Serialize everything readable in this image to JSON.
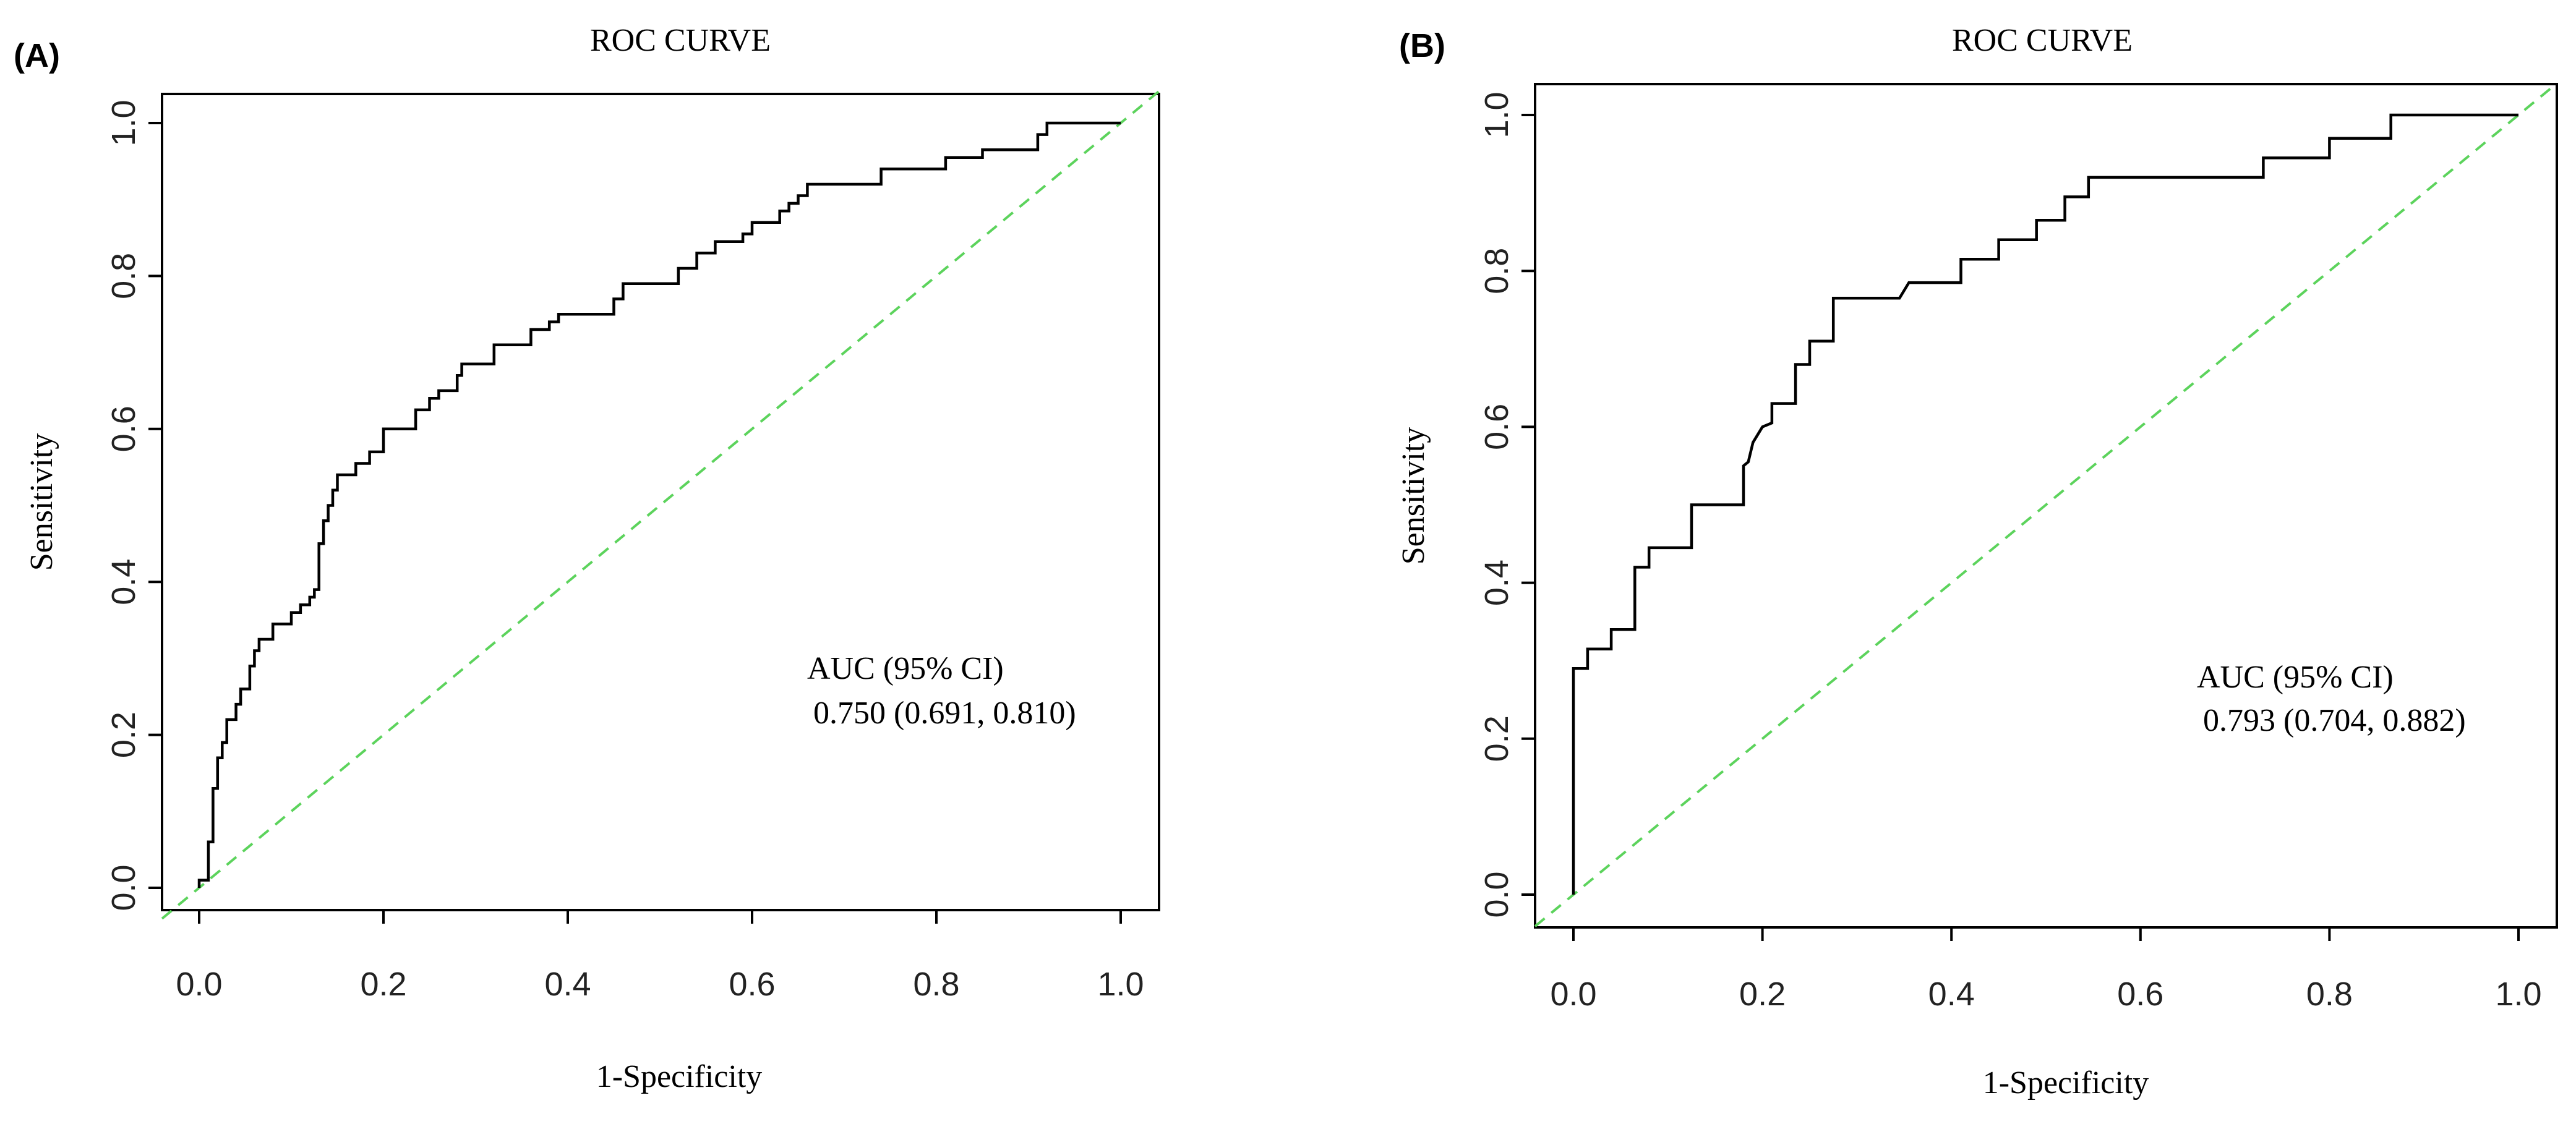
{
  "chart_data": [
    {
      "type": "line",
      "panel_label": "(A)",
      "title": "ROC CURVE",
      "xlabel": "1-Specificity",
      "ylabel": "Sensitivity",
      "xlim": [
        0,
        1
      ],
      "ylim": [
        0,
        1
      ],
      "x_ticks": [
        "0.0",
        "0.2",
        "0.4",
        "0.6",
        "0.8",
        "1.0"
      ],
      "y_ticks": [
        "0.0",
        "0.2",
        "0.4",
        "0.6",
        "0.8",
        "1.0"
      ],
      "grid": false,
      "annotation": [
        "AUC (95% CI)",
        "0.750 (0.691, 0.810)"
      ],
      "reference_line_color": "#5cd35c",
      "curve_color": "#000000",
      "series": [
        {
          "points": [
            [
              0.0,
              0.0
            ],
            [
              0.0,
              0.01
            ],
            [
              0.01,
              0.01
            ],
            [
              0.01,
              0.06
            ],
            [
              0.015,
              0.06
            ],
            [
              0.015,
              0.13
            ],
            [
              0.02,
              0.13
            ],
            [
              0.02,
              0.17
            ],
            [
              0.025,
              0.17
            ],
            [
              0.025,
              0.19
            ],
            [
              0.03,
              0.19
            ],
            [
              0.03,
              0.22
            ],
            [
              0.04,
              0.22
            ],
            [
              0.04,
              0.24
            ],
            [
              0.045,
              0.24
            ],
            [
              0.045,
              0.26
            ],
            [
              0.055,
              0.26
            ],
            [
              0.055,
              0.29
            ],
            [
              0.06,
              0.29
            ],
            [
              0.06,
              0.31
            ],
            [
              0.065,
              0.31
            ],
            [
              0.065,
              0.325
            ],
            [
              0.08,
              0.325
            ],
            [
              0.08,
              0.345
            ],
            [
              0.1,
              0.345
            ],
            [
              0.1,
              0.36
            ],
            [
              0.11,
              0.36
            ],
            [
              0.11,
              0.37
            ],
            [
              0.12,
              0.37
            ],
            [
              0.12,
              0.38
            ],
            [
              0.125,
              0.38
            ],
            [
              0.125,
              0.39
            ],
            [
              0.13,
              0.39
            ],
            [
              0.13,
              0.45
            ],
            [
              0.135,
              0.45
            ],
            [
              0.135,
              0.48
            ],
            [
              0.14,
              0.48
            ],
            [
              0.14,
              0.5
            ],
            [
              0.145,
              0.5
            ],
            [
              0.145,
              0.52
            ],
            [
              0.15,
              0.52
            ],
            [
              0.15,
              0.54
            ],
            [
              0.17,
              0.54
            ],
            [
              0.17,
              0.555
            ],
            [
              0.185,
              0.555
            ],
            [
              0.185,
              0.57
            ],
            [
              0.2,
              0.57
            ],
            [
              0.2,
              0.6
            ],
            [
              0.235,
              0.6
            ],
            [
              0.235,
              0.625
            ],
            [
              0.25,
              0.625
            ],
            [
              0.25,
              0.64
            ],
            [
              0.26,
              0.64
            ],
            [
              0.26,
              0.65
            ],
            [
              0.28,
              0.65
            ],
            [
              0.28,
              0.67
            ],
            [
              0.285,
              0.67
            ],
            [
              0.285,
              0.685
            ],
            [
              0.32,
              0.685
            ],
            [
              0.32,
              0.71
            ],
            [
              0.36,
              0.71
            ],
            [
              0.36,
              0.73
            ],
            [
              0.38,
              0.73
            ],
            [
              0.38,
              0.74
            ],
            [
              0.39,
              0.74
            ],
            [
              0.39,
              0.75
            ],
            [
              0.45,
              0.75
            ],
            [
              0.45,
              0.77
            ],
            [
              0.46,
              0.77
            ],
            [
              0.46,
              0.79
            ],
            [
              0.52,
              0.79
            ],
            [
              0.52,
              0.81
            ],
            [
              0.54,
              0.81
            ],
            [
              0.54,
              0.83
            ],
            [
              0.56,
              0.83
            ],
            [
              0.56,
              0.845
            ],
            [
              0.59,
              0.845
            ],
            [
              0.59,
              0.855
            ],
            [
              0.6,
              0.855
            ],
            [
              0.6,
              0.87
            ],
            [
              0.63,
              0.87
            ],
            [
              0.63,
              0.885
            ],
            [
              0.64,
              0.885
            ],
            [
              0.64,
              0.895
            ],
            [
              0.65,
              0.895
            ],
            [
              0.65,
              0.905
            ],
            [
              0.66,
              0.905
            ],
            [
              0.66,
              0.92
            ],
            [
              0.74,
              0.92
            ],
            [
              0.74,
              0.94
            ],
            [
              0.81,
              0.94
            ],
            [
              0.81,
              0.955
            ],
            [
              0.85,
              0.955
            ],
            [
              0.85,
              0.965
            ],
            [
              0.91,
              0.965
            ],
            [
              0.91,
              0.985
            ],
            [
              0.92,
              0.985
            ],
            [
              0.92,
              1.0
            ],
            [
              1.0,
              1.0
            ]
          ]
        }
      ]
    },
    {
      "type": "line",
      "panel_label": "(B)",
      "title": "ROC CURVE",
      "xlabel": "1-Specificity",
      "ylabel": "Sensitivity",
      "xlim": [
        0,
        1
      ],
      "ylim": [
        0,
        1
      ],
      "x_ticks": [
        "0.0",
        "0.2",
        "0.4",
        "0.6",
        "0.8",
        "1.0"
      ],
      "y_ticks": [
        "0.0",
        "0.2",
        "0.4",
        "0.6",
        "0.8",
        "1.0"
      ],
      "grid": false,
      "annotation": [
        "AUC (95% CI)",
        "0.793 (0.704, 0.882)"
      ],
      "reference_line_color": "#5cd35c",
      "curve_color": "#000000",
      "series": [
        {
          "points": [
            [
              0.0,
              0.0
            ],
            [
              0.0,
              0.29
            ],
            [
              0.015,
              0.29
            ],
            [
              0.015,
              0.315
            ],
            [
              0.04,
              0.315
            ],
            [
              0.04,
              0.34
            ],
            [
              0.065,
              0.34
            ],
            [
              0.065,
              0.42
            ],
            [
              0.08,
              0.42
            ],
            [
              0.08,
              0.445
            ],
            [
              0.125,
              0.445
            ],
            [
              0.125,
              0.5
            ],
            [
              0.18,
              0.5
            ],
            [
              0.18,
              0.55
            ],
            [
              0.185,
              0.555
            ],
            [
              0.19,
              0.58
            ],
            [
              0.2,
              0.6
            ],
            [
              0.21,
              0.605
            ],
            [
              0.21,
              0.63
            ],
            [
              0.235,
              0.63
            ],
            [
              0.235,
              0.68
            ],
            [
              0.25,
              0.68
            ],
            [
              0.25,
              0.71
            ],
            [
              0.275,
              0.71
            ],
            [
              0.275,
              0.765
            ],
            [
              0.345,
              0.765
            ],
            [
              0.355,
              0.785
            ],
            [
              0.41,
              0.785
            ],
            [
              0.41,
              0.815
            ],
            [
              0.45,
              0.815
            ],
            [
              0.45,
              0.84
            ],
            [
              0.49,
              0.84
            ],
            [
              0.49,
              0.865
            ],
            [
              0.52,
              0.865
            ],
            [
              0.52,
              0.895
            ],
            [
              0.545,
              0.895
            ],
            [
              0.545,
              0.92
            ],
            [
              0.73,
              0.92
            ],
            [
              0.73,
              0.945
            ],
            [
              0.8,
              0.945
            ],
            [
              0.8,
              0.97
            ],
            [
              0.865,
              0.97
            ],
            [
              0.865,
              1.0
            ],
            [
              1.0,
              1.0
            ]
          ]
        }
      ]
    }
  ]
}
